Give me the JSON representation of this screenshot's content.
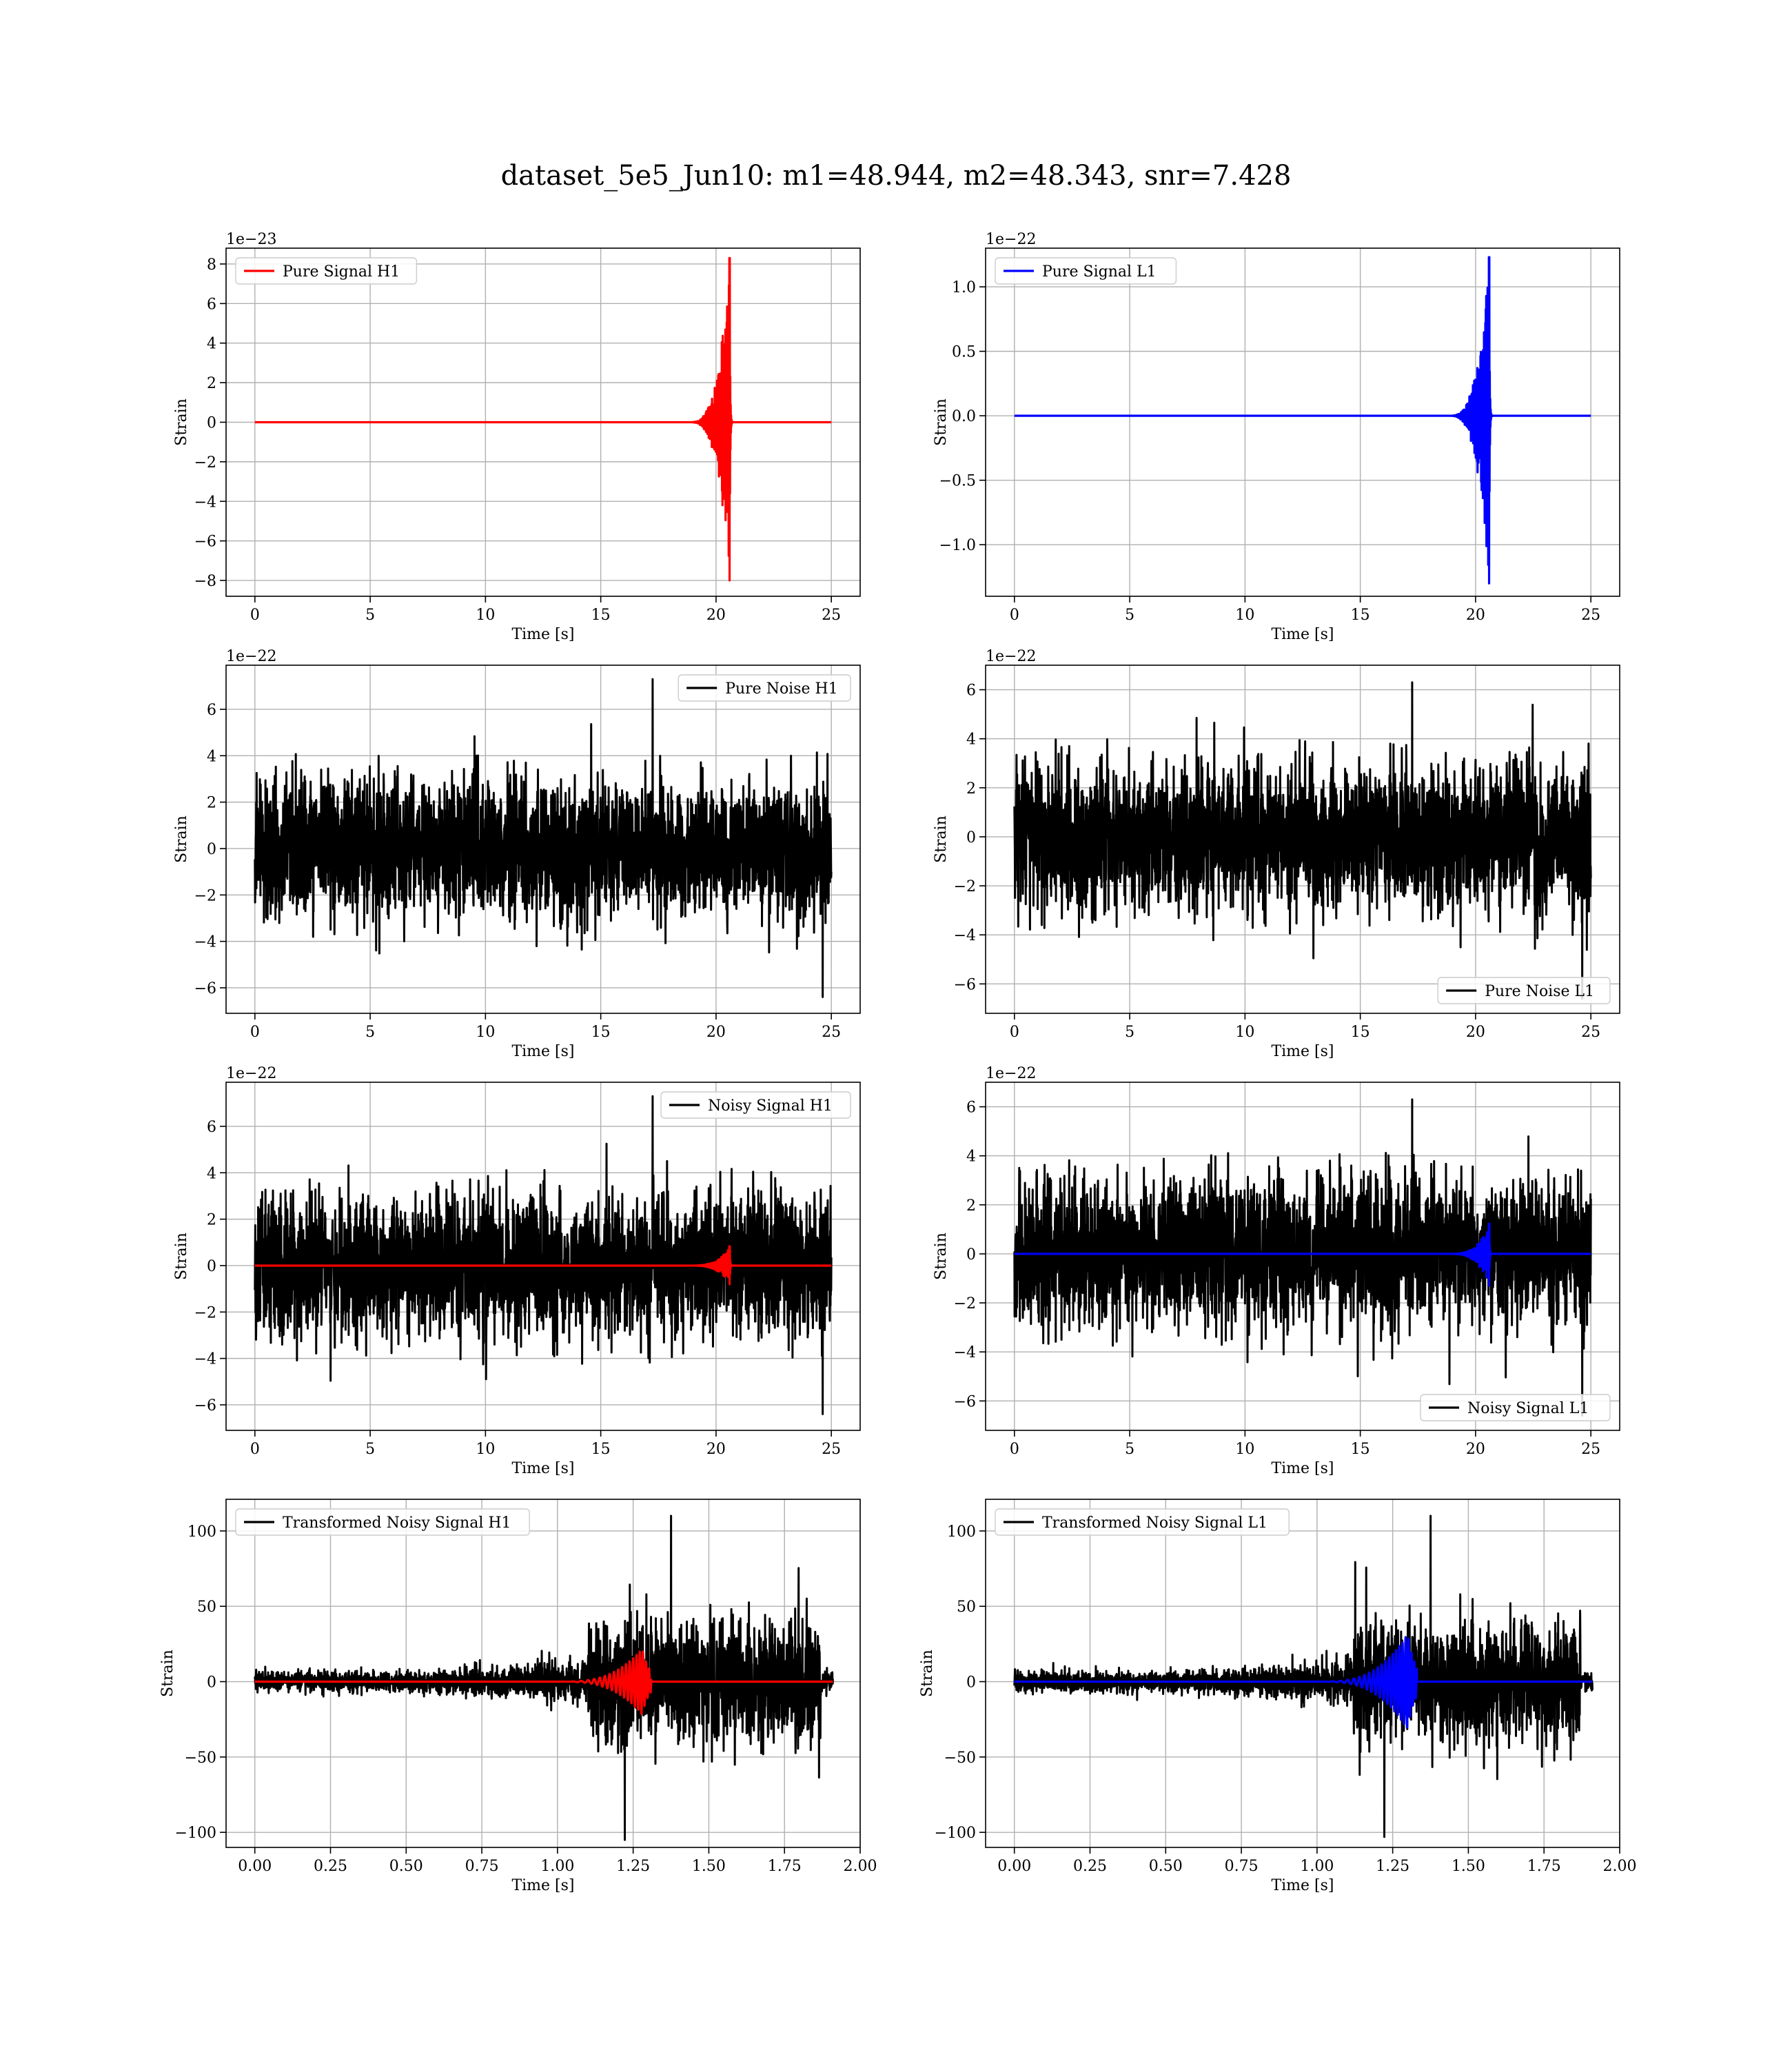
{
  "figure": {
    "title": "dataset_5e5_Jun10: m1=48.944, m2=48.343, snr=7.428"
  },
  "chart_data": [
    {
      "type": "line",
      "panel": "pure-signal-h1",
      "xlabel": "Time [s]",
      "ylabel": "Strain",
      "offset_text": "1e−23",
      "xlim": [
        -1.25,
        26.25
      ],
      "ylim": [
        -8.8,
        8.8
      ],
      "xticks": [
        0,
        5,
        10,
        15,
        20,
        25
      ],
      "xtick_labels": [
        "0",
        "5",
        "10",
        "15",
        "20",
        "25"
      ],
      "yticks": [
        8,
        6,
        4,
        2,
        0,
        -2,
        -4,
        -6,
        -8
      ],
      "ytick_labels": [
        "8",
        "6",
        "4",
        "2",
        "0",
        "−2",
        "−4",
        "−6",
        "−8"
      ],
      "grid": true,
      "legend_position": "upper-left",
      "series": [
        {
          "name": "Pure Signal H1",
          "color": "#ff0000",
          "kind": "chirp",
          "x_start": 0,
          "x_end": 25,
          "merger": 20.6,
          "onset": 18.8,
          "peak": 8.3,
          "trough": -8.0
        }
      ]
    },
    {
      "type": "line",
      "panel": "pure-signal-l1",
      "xlabel": "Time [s]",
      "ylabel": "Strain",
      "offset_text": "1e−22",
      "xlim": [
        -1.25,
        26.25
      ],
      "ylim": [
        -1.4,
        1.3
      ],
      "xticks": [
        0,
        5,
        10,
        15,
        20,
        25
      ],
      "xtick_labels": [
        "0",
        "5",
        "10",
        "15",
        "20",
        "25"
      ],
      "yticks": [
        1.0,
        0.5,
        0.0,
        -0.5,
        -1.0
      ],
      "ytick_labels": [
        "1.0",
        "0.5",
        "0.0",
        "−0.5",
        "−1.0"
      ],
      "grid": true,
      "legend_position": "upper-left",
      "series": [
        {
          "name": "Pure Signal L1",
          "color": "#0000ff",
          "kind": "chirp",
          "x_start": 0,
          "x_end": 25,
          "merger": 20.6,
          "onset": 18.8,
          "peak": 1.23,
          "trough": -1.3
        }
      ]
    },
    {
      "type": "line",
      "panel": "pure-noise-h1",
      "xlabel": "Time [s]",
      "ylabel": "Strain",
      "offset_text": "1e−22",
      "xlim": [
        -1.25,
        26.25
      ],
      "ylim": [
        -7.1,
        7.9
      ],
      "xticks": [
        0,
        5,
        10,
        15,
        20,
        25
      ],
      "xtick_labels": [
        "0",
        "5",
        "10",
        "15",
        "20",
        "25"
      ],
      "yticks": [
        6,
        4,
        2,
        0,
        -2,
        -4,
        -6
      ],
      "ytick_labels": [
        "6",
        "4",
        "2",
        "0",
        "−2",
        "−4",
        "−6"
      ],
      "grid": true,
      "legend_position": "upper-right",
      "series": [
        {
          "name": "Pure Noise H1",
          "color": "#000000",
          "kind": "noise",
          "x_start": 0,
          "x_end": 25,
          "sigma": 1.45,
          "max": 7.3,
          "min": -6.4
        }
      ]
    },
    {
      "type": "line",
      "panel": "pure-noise-l1",
      "xlabel": "Time [s]",
      "ylabel": "Strain",
      "offset_text": "1e−22",
      "xlim": [
        -1.25,
        26.25
      ],
      "ylim": [
        -7.2,
        7.0
      ],
      "xticks": [
        0,
        5,
        10,
        15,
        20,
        25
      ],
      "xtick_labels": [
        "0",
        "5",
        "10",
        "15",
        "20",
        "25"
      ],
      "yticks": [
        6,
        4,
        2,
        0,
        -2,
        -4,
        -6
      ],
      "ytick_labels": [
        "6",
        "4",
        "2",
        "0",
        "−2",
        "−4",
        "−6"
      ],
      "grid": true,
      "legend_position": "lower-right",
      "series": [
        {
          "name": "Pure Noise L1",
          "color": "#000000",
          "kind": "noise",
          "x_start": 0,
          "x_end": 25,
          "sigma": 1.45,
          "max": 6.3,
          "min": -6.6
        }
      ]
    },
    {
      "type": "line",
      "panel": "noisy-signal-h1",
      "xlabel": "Time [s]",
      "ylabel": "Strain",
      "offset_text": "1e−22",
      "xlim": [
        -1.25,
        26.25
      ],
      "ylim": [
        -7.1,
        7.9
      ],
      "xticks": [
        0,
        5,
        10,
        15,
        20,
        25
      ],
      "xtick_labels": [
        "0",
        "5",
        "10",
        "15",
        "20",
        "25"
      ],
      "yticks": [
        6,
        4,
        2,
        0,
        -2,
        -4,
        -6
      ],
      "ytick_labels": [
        "6",
        "4",
        "2",
        "0",
        "−2",
        "−4",
        "−6"
      ],
      "grid": true,
      "legend_position": "upper-right",
      "series": [
        {
          "name": "Noisy Signal H1",
          "color": "#000000",
          "kind": "noise",
          "x_start": 0,
          "x_end": 25,
          "sigma": 1.45,
          "max": 7.3,
          "min": -6.4
        },
        {
          "color": "#ff0000",
          "kind": "chirp",
          "x_start": 0,
          "x_end": 25,
          "merger": 20.6,
          "onset": 18.8,
          "peak": 0.83,
          "trough": -0.8
        }
      ]
    },
    {
      "type": "line",
      "panel": "noisy-signal-l1",
      "xlabel": "Time [s]",
      "ylabel": "Strain",
      "offset_text": "1e−22",
      "xlim": [
        -1.25,
        26.25
      ],
      "ylim": [
        -7.2,
        7.0
      ],
      "xticks": [
        0,
        5,
        10,
        15,
        20,
        25
      ],
      "xtick_labels": [
        "0",
        "5",
        "10",
        "15",
        "20",
        "25"
      ],
      "yticks": [
        6,
        4,
        2,
        0,
        -2,
        -4,
        -6
      ],
      "ytick_labels": [
        "6",
        "4",
        "2",
        "0",
        "−2",
        "−4",
        "−6"
      ],
      "grid": true,
      "legend_position": "lower-right",
      "series": [
        {
          "name": "Noisy Signal L1",
          "color": "#000000",
          "kind": "noise",
          "x_start": 0,
          "x_end": 25,
          "sigma": 1.45,
          "max": 6.3,
          "min": -6.6
        },
        {
          "color": "#0000ff",
          "kind": "chirp",
          "x_start": 0,
          "x_end": 25,
          "merger": 20.6,
          "onset": 18.8,
          "peak": 1.23,
          "trough": -1.3
        }
      ]
    },
    {
      "type": "line",
      "panel": "transformed-noisy-signal-h1",
      "xlabel": "Time [s]",
      "ylabel": "Strain",
      "offset_text": "",
      "xlim": [
        -0.095,
        2.0
      ],
      "ylim": [
        -110,
        121
      ],
      "xticks": [
        0.0,
        0.25,
        0.5,
        0.75,
        1.0,
        1.25,
        1.5,
        1.75,
        2.0
      ],
      "xtick_labels": [
        "0.00",
        "0.25",
        "0.50",
        "0.75",
        "1.00",
        "1.25",
        "1.50",
        "1.75",
        "2.00"
      ],
      "yticks": [
        100,
        50,
        0,
        -50,
        -100
      ],
      "ytick_labels": [
        "100",
        "50",
        "0",
        "−50",
        "−100"
      ],
      "grid": true,
      "legend_position": "upper-left",
      "series": [
        {
          "name": "Transformed Noisy Signal H1",
          "color": "#000000",
          "kind": "whitened",
          "x_start": 0,
          "x_end": 1.91,
          "low_amp": 6,
          "mid_amp": 12,
          "jump_at": 1.1,
          "high_amp": 35,
          "drop_at": 1.87,
          "max": 110,
          "min": -105
        },
        {
          "color": "#ff0000",
          "kind": "burst",
          "x_start": 0,
          "x_end": 1.91,
          "onset": 1.0,
          "merger": 1.28,
          "peak": 22,
          "trough": -22
        }
      ]
    },
    {
      "type": "line",
      "panel": "transformed-noisy-signal-l1",
      "xlabel": "Time [s]",
      "ylabel": "Strain",
      "offset_text": "",
      "xlim": [
        -0.095,
        2.0
      ],
      "ylim": [
        -110,
        121
      ],
      "xticks": [
        0.0,
        0.25,
        0.5,
        0.75,
        1.0,
        1.25,
        1.5,
        1.75,
        2.0
      ],
      "xtick_labels": [
        "0.00",
        "0.25",
        "0.50",
        "0.75",
        "1.00",
        "1.25",
        "1.50",
        "1.75",
        "2.00"
      ],
      "yticks": [
        100,
        50,
        0,
        -50,
        -100
      ],
      "ytick_labels": [
        "100",
        "50",
        "0",
        "−50",
        "−100"
      ],
      "grid": true,
      "legend_position": "upper-left",
      "series": [
        {
          "name": "Transformed Noisy Signal L1",
          "color": "#000000",
          "kind": "whitened",
          "x_start": 0,
          "x_end": 1.91,
          "low_amp": 6,
          "mid_amp": 12,
          "jump_at": 1.12,
          "high_amp": 35,
          "drop_at": 1.87,
          "max": 110,
          "min": -103
        },
        {
          "color": "#0000ff",
          "kind": "burst",
          "x_start": 0,
          "x_end": 1.91,
          "onset": 1.0,
          "merger": 1.3,
          "peak": 32,
          "trough": -32
        }
      ]
    }
  ]
}
